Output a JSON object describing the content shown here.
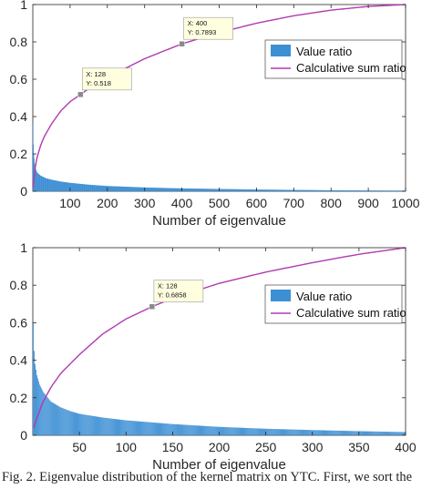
{
  "chart_data": [
    {
      "type": "bar+line",
      "xlabel": "Number of eigenvalue",
      "xlim": [
        0,
        1000
      ],
      "ylim": [
        0,
        1
      ],
      "xticks": [
        100,
        200,
        300,
        400,
        500,
        600,
        700,
        800,
        900,
        1000
      ],
      "yticks": [
        0,
        0.2,
        0.4,
        0.6,
        0.8,
        1
      ],
      "ytick_labels": [
        "0",
        "0.2",
        "0.4",
        "0.6",
        "0.8",
        "1"
      ],
      "legend_position": "top-right",
      "series": [
        {
          "name": "Value ratio",
          "kind": "bar",
          "color": "#3d8fd4",
          "x": [
            1,
            2,
            3,
            5,
            8,
            12,
            20,
            35,
            50,
            75,
            100,
            150,
            200,
            300,
            400,
            500,
            600,
            700,
            800,
            900,
            1000
          ],
          "values": [
            0.36,
            0.25,
            0.2,
            0.15,
            0.12,
            0.1,
            0.085,
            0.07,
            0.062,
            0.052,
            0.045,
            0.035,
            0.028,
            0.02,
            0.015,
            0.012,
            0.009,
            0.007,
            0.005,
            0.004,
            0.003
          ]
        },
        {
          "name": "Calculative sum ratio",
          "kind": "line",
          "color": "#b03ab0",
          "x": [
            1,
            5,
            10,
            20,
            30,
            50,
            75,
            100,
            128,
            150,
            200,
            250,
            300,
            350,
            400,
            450,
            500,
            600,
            700,
            800,
            900,
            1000
          ],
          "values": [
            0.02,
            0.11,
            0.17,
            0.24,
            0.29,
            0.36,
            0.43,
            0.48,
            0.518,
            0.55,
            0.61,
            0.66,
            0.71,
            0.75,
            0.7893,
            0.82,
            0.85,
            0.9,
            0.94,
            0.97,
            0.99,
            1.0
          ]
        }
      ],
      "datatip": {
        "x": 400,
        "y": 0.7893,
        "x_text": "X: 400",
        "y_text": "Y: 0.7893"
      },
      "datatip2": {
        "x": 128,
        "y": 0.518,
        "x_text": "X: 128",
        "y_text": "Y: 0.518"
      }
    },
    {
      "type": "bar+line",
      "xlabel": "Number of eigenvalue",
      "xlim": [
        0,
        400
      ],
      "ylim": [
        0,
        1
      ],
      "xticks": [
        50,
        100,
        150,
        200,
        250,
        300,
        350,
        400
      ],
      "yticks": [
        0,
        0.2,
        0.4,
        0.6,
        0.8,
        1
      ],
      "ytick_labels": [
        "0",
        "0.2",
        "0.4",
        "0.6",
        "0.8",
        "1"
      ],
      "legend_position": "top-right",
      "series": [
        {
          "name": "Value ratio",
          "kind": "bar",
          "color": "#3d8fd4",
          "x": [
            1,
            2,
            3,
            5,
            8,
            12,
            20,
            30,
            40,
            50,
            75,
            100,
            150,
            200,
            250,
            300,
            350,
            400
          ],
          "values": [
            0.6,
            0.45,
            0.38,
            0.32,
            0.27,
            0.23,
            0.18,
            0.15,
            0.13,
            0.115,
            0.095,
            0.08,
            0.06,
            0.045,
            0.035,
            0.028,
            0.022,
            0.017
          ]
        },
        {
          "name": "Calculative sum ratio",
          "kind": "line",
          "color": "#b03ab0",
          "x": [
            1,
            5,
            10,
            20,
            30,
            50,
            75,
            100,
            128,
            150,
            200,
            250,
            300,
            350,
            400
          ],
          "values": [
            0.04,
            0.1,
            0.17,
            0.26,
            0.33,
            0.43,
            0.54,
            0.62,
            0.6858,
            0.73,
            0.81,
            0.87,
            0.92,
            0.965,
            1.0
          ]
        }
      ],
      "datatip": {
        "x": 128,
        "y": 0.6858,
        "x_text": "X: 128",
        "y_text": "Y: 0.6858"
      }
    }
  ],
  "caption": "Fig. 2.   Eigenvalue distribution of the kernel matrix on YTC. First, we sort the"
}
